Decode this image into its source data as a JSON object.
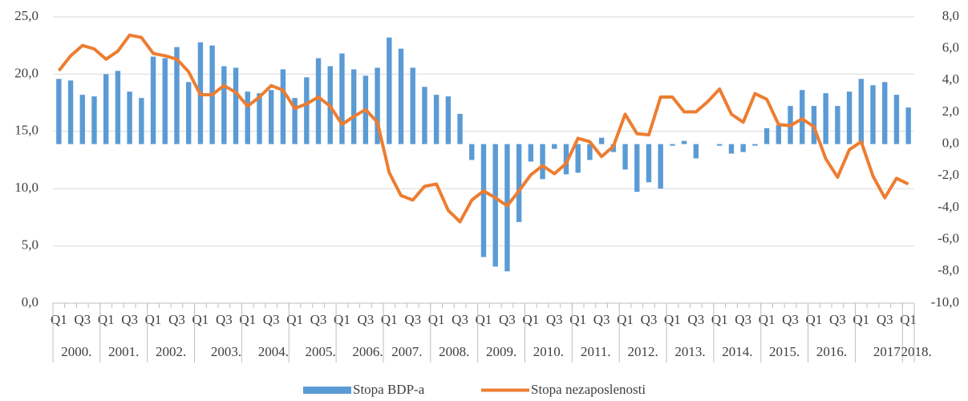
{
  "chart_data": {
    "type": "combo",
    "categories": [
      "Q1",
      null,
      "Q3",
      null,
      "Q1",
      null,
      "Q3",
      null,
      "Q1",
      null,
      "Q3",
      null,
      "Q1",
      null,
      "Q3",
      null,
      "Q1",
      null,
      "Q3",
      null,
      "Q1",
      null,
      "Q3",
      null,
      "Q1",
      null,
      "Q3",
      null,
      "Q1",
      null,
      "Q3",
      null,
      "Q1",
      null,
      "Q3",
      null,
      "Q1",
      null,
      "Q3",
      null,
      "Q1",
      null,
      "Q3",
      null,
      "Q1",
      null,
      "Q3",
      null,
      "Q1",
      null,
      "Q3",
      null,
      "Q1",
      null,
      "Q3",
      null,
      "Q1",
      null,
      "Q3",
      null,
      "Q1",
      null,
      "Q3",
      null,
      "Q1",
      null,
      "Q3",
      null,
      "Q1",
      null,
      "Q3",
      null,
      "Q1"
    ],
    "years": [
      "2000.",
      "2001.",
      "2002.",
      "2003.",
      "2004.",
      "2005.",
      "2006.",
      "2007.",
      "2008.",
      "2009.",
      "2010.",
      "2011.",
      "2012.",
      "2013.",
      "2014.",
      "2015.",
      "2016.",
      "2017",
      "2018."
    ],
    "series": [
      {
        "name": "Stopa BDP-a",
        "type": "bar",
        "axis": "y2",
        "color": "#5b9bd5",
        "values": [
          4.1,
          4.0,
          3.1,
          3.0,
          4.4,
          4.6,
          3.3,
          2.9,
          5.5,
          5.4,
          6.1,
          3.9,
          6.4,
          6.2,
          4.9,
          4.8,
          3.3,
          3.2,
          3.4,
          4.7,
          2.9,
          4.2,
          5.4,
          4.9,
          5.7,
          4.7,
          4.3,
          4.8,
          6.7,
          6.0,
          4.8,
          3.6,
          3.1,
          3.0,
          1.9,
          -1.0,
          -7.1,
          -7.7,
          -8.0,
          -4.9,
          -1.1,
          -2.2,
          -0.3,
          -1.9,
          -1.8,
          -1.0,
          0.4,
          -0.5,
          -1.6,
          -3.0,
          -2.4,
          -2.8,
          -0.1,
          0.2,
          -0.9,
          0.0,
          -0.1,
          -0.6,
          -0.5,
          -0.1,
          1.0,
          1.2,
          2.4,
          3.4,
          2.4,
          3.2,
          2.4,
          3.3,
          4.1,
          3.7,
          3.9,
          3.1,
          2.3
        ]
      },
      {
        "name": "Stopa nezaposlenosti",
        "type": "line",
        "axis": "y",
        "color": "#ed7d31",
        "values": [
          20.3,
          21.6,
          22.5,
          22.2,
          21.3,
          22.0,
          23.4,
          23.2,
          21.8,
          21.6,
          21.3,
          20.2,
          18.2,
          18.2,
          19.0,
          18.4,
          17.2,
          18.0,
          19.0,
          18.6,
          17.0,
          17.4,
          18.0,
          17.2,
          15.6,
          16.3,
          16.9,
          15.8,
          11.4,
          9.4,
          9.0,
          10.2,
          10.4,
          8.1,
          7.1,
          9.0,
          9.8,
          9.2,
          8.5,
          9.8,
          11.2,
          12.0,
          11.3,
          12.2,
          14.4,
          14.1,
          12.8,
          13.7,
          16.5,
          14.8,
          14.7,
          18.0,
          18.0,
          16.7,
          16.7,
          17.6,
          18.7,
          16.5,
          15.8,
          18.3,
          17.8,
          15.6,
          15.5,
          16.1,
          15.4,
          12.6,
          11.0,
          13.4,
          14.1,
          11.1,
          9.2,
          10.9,
          10.4
        ]
      }
    ],
    "ylim": [
      0,
      25
    ],
    "yticks": [
      {
        "value": 0,
        "label": "0,0"
      },
      {
        "value": 5,
        "label": "5,0"
      },
      {
        "value": 10,
        "label": "10,0"
      },
      {
        "value": 15,
        "label": "15,0"
      },
      {
        "value": 20,
        "label": "20,0"
      },
      {
        "value": 25,
        "label": "25,0"
      }
    ],
    "y2lim": [
      -10,
      8
    ],
    "y2ticks": [
      {
        "value": -10,
        "label": "-10,0"
      },
      {
        "value": -8,
        "label": "-8,0"
      },
      {
        "value": -6,
        "label": "-6,0"
      },
      {
        "value": -4,
        "label": "-4,0"
      },
      {
        "value": -2,
        "label": "-2,0"
      },
      {
        "value": 0,
        "label": "0,0"
      },
      {
        "value": 2,
        "label": "2,0"
      },
      {
        "value": 4,
        "label": "4,0"
      },
      {
        "value": 6,
        "label": "6,0"
      },
      {
        "value": 8,
        "label": "8,0"
      }
    ],
    "grid": true,
    "legend": "bottom"
  }
}
